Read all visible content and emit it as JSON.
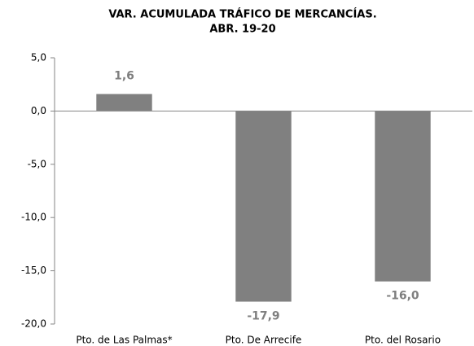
{
  "chart_data": {
    "type": "bar",
    "title": "VAR. ACUMULADA TRÁFICO DE MERCANCÍAS.",
    "subtitle": "ABR. 19-20",
    "categories": [
      "Pto. de Las Palmas*",
      "Pto. De Arrecife",
      "Pto. del Rosario"
    ],
    "values": [
      1.6,
      -17.9,
      -16.0
    ],
    "value_labels": [
      "1,6",
      "-17,9",
      "-16,0"
    ],
    "color": "#808080",
    "ylim": [
      -20,
      5
    ],
    "yticks": [
      {
        "value": -20,
        "label": "-20,0"
      },
      {
        "value": -15,
        "label": "-15,0"
      },
      {
        "value": -10,
        "label": "-10,0"
      },
      {
        "value": -5,
        "label": "-5,0"
      },
      {
        "value": 0,
        "label": "0,0"
      },
      {
        "value": 5,
        "label": "5,0"
      }
    ],
    "grid": false
  }
}
